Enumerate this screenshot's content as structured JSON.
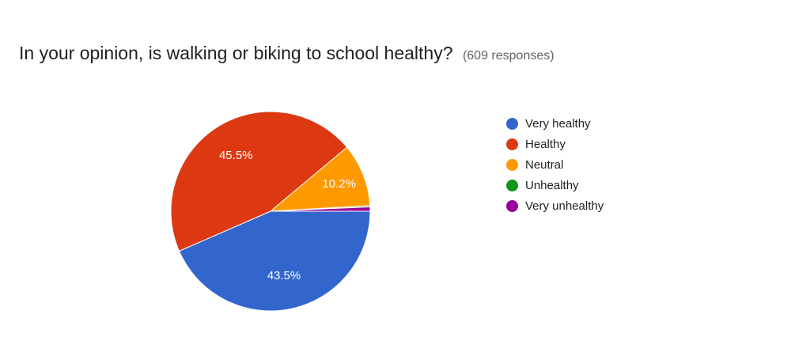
{
  "header": {
    "question": "In your opinion, is walking or biking to school healthy?",
    "responses": "(609 responses)"
  },
  "chart_data": {
    "type": "pie",
    "title": "In your opinion, is walking or biking to school healthy?",
    "categories": [
      "Very healthy",
      "Healthy",
      "Neutral",
      "Unhealthy",
      "Very unhealthy"
    ],
    "values": [
      43.5,
      45.5,
      10.2,
      0.2,
      0.7
    ],
    "data_labels": [
      "43.5%",
      "45.5%",
      "10.2%",
      "",
      ""
    ],
    "colors": [
      "#3366cc",
      "#dc3912",
      "#ff9900",
      "#109618",
      "#990099"
    ],
    "start": "3 o'clock, clockwise",
    "legend": "right"
  }
}
